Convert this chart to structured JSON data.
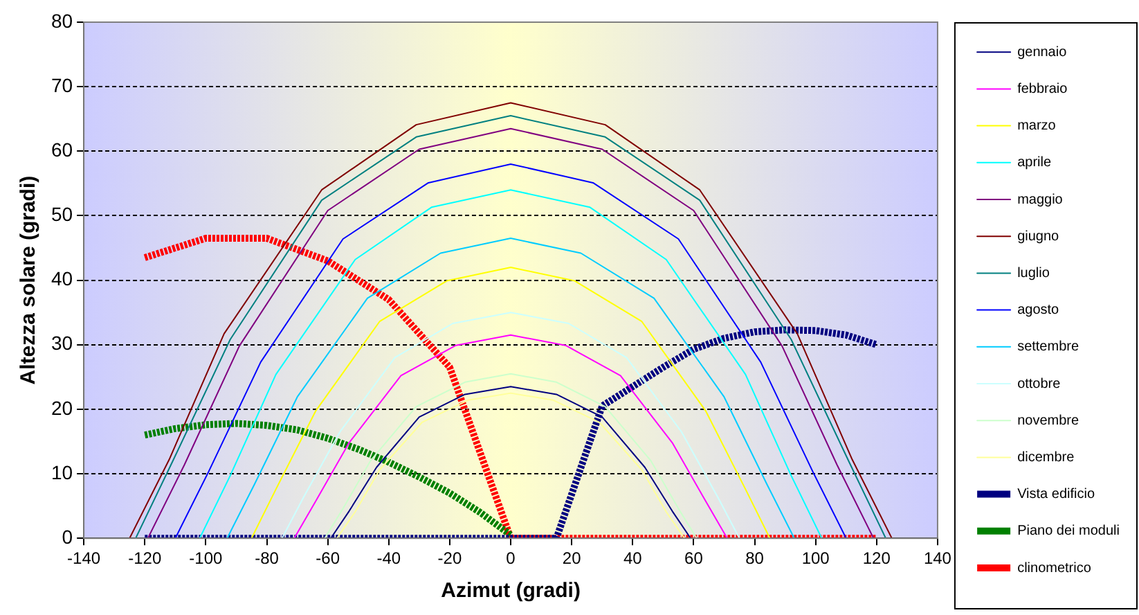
{
  "chart_data": {
    "type": "line",
    "xlabel": "Azimut (gradi)",
    "ylabel": "Altezza solare (gradi)",
    "xlim": [
      -140,
      140
    ],
    "xticks": [
      -140,
      -120,
      -100,
      -80,
      -60,
      -40,
      -20,
      0,
      20,
      40,
      60,
      80,
      100,
      120,
      140
    ],
    "ylim": [
      0,
      80
    ],
    "yticks": [
      0,
      10,
      20,
      30,
      40,
      50,
      60,
      70,
      80
    ],
    "grid": "y",
    "legend": "right",
    "marker": "none",
    "line_style": "solid",
    "series": [
      {
        "name": "gennaio",
        "color": "#000080",
        "x": [
          -59,
          -53,
          -44,
          -30,
          -15,
          0,
          15,
          30,
          44,
          53,
          59
        ],
        "values": [
          0,
          4.2,
          11,
          18.8,
          22.3,
          23.5,
          22.3,
          18.8,
          11,
          4.2,
          0
        ]
      },
      {
        "name": "febbraio",
        "color": "#ff00ff",
        "x": [
          -71,
          -64,
          -53,
          -36,
          -18,
          0,
          18,
          36,
          53,
          64,
          71
        ],
        "values": [
          0,
          5.7,
          14.8,
          25.2,
          29.9,
          31.5,
          29.9,
          25.2,
          14.8,
          5.7,
          0
        ]
      },
      {
        "name": "marzo",
        "color": "#ffff00",
        "x": [
          -85,
          -77,
          -64,
          -43,
          -21,
          0,
          21,
          43,
          64,
          77,
          85
        ],
        "values": [
          0,
          7.6,
          19.7,
          33.6,
          39.9,
          42,
          39.9,
          33.6,
          19.7,
          7.6,
          0
        ]
      },
      {
        "name": "aprile",
        "color": "#00ffff",
        "x": [
          -102,
          -92,
          -77,
          -51,
          -26,
          0,
          26,
          51,
          77,
          92,
          102
        ],
        "values": [
          0,
          9.7,
          25.4,
          43.2,
          51.3,
          54,
          51.3,
          43.2,
          25.4,
          9.7,
          0
        ]
      },
      {
        "name": "maggio",
        "color": "#800080",
        "x": [
          -119,
          -107,
          -89,
          -60,
          -30,
          0,
          30,
          60,
          89,
          107,
          119
        ],
        "values": [
          0,
          11.4,
          29.8,
          50.8,
          60.3,
          63.5,
          60.3,
          50.8,
          29.8,
          11.4,
          0
        ]
      },
      {
        "name": "giugno",
        "color": "#800000",
        "x": [
          -125,
          -112,
          -94,
          -62,
          -31,
          0,
          31,
          62,
          94,
          112,
          125
        ],
        "values": [
          0,
          12.2,
          31.7,
          54,
          64.1,
          67.5,
          64.1,
          54,
          31.7,
          12.2,
          0
        ]
      },
      {
        "name": "luglio",
        "color": "#008080",
        "x": [
          -123,
          -111,
          -92,
          -62,
          -31,
          0,
          31,
          62,
          92,
          111,
          123
        ],
        "values": [
          0,
          11.8,
          30.8,
          52.4,
          62.2,
          65.5,
          62.2,
          52.4,
          30.8,
          11.8,
          0
        ]
      },
      {
        "name": "agosto",
        "color": "#0000ff",
        "x": [
          -110,
          -99,
          -82,
          -55,
          -27,
          0,
          27,
          55,
          82,
          99,
          110
        ],
        "values": [
          0,
          10.4,
          27.3,
          46.4,
          55.1,
          58,
          55.1,
          46.4,
          27.3,
          10.4,
          0
        ]
      },
      {
        "name": "settembre",
        "color": "#00ccff",
        "x": [
          -93,
          -84,
          -70,
          -47,
          -23,
          0,
          23,
          47,
          70,
          84,
          93
        ],
        "values": [
          0,
          8.4,
          21.9,
          37.2,
          44.2,
          46.5,
          44.2,
          37.2,
          21.9,
          8.4,
          0
        ]
      },
      {
        "name": "ottobre",
        "color": "#ccffff",
        "x": [
          -75,
          -68,
          -56,
          -38,
          -19,
          0,
          19,
          38,
          56,
          68,
          75
        ],
        "values": [
          0,
          6.3,
          16.5,
          28,
          33.3,
          35,
          33.3,
          28,
          16.5,
          6.3,
          0
        ]
      },
      {
        "name": "novembre",
        "color": "#ccffcc",
        "x": [
          -61,
          -55,
          -46,
          -31,
          -15,
          0,
          15,
          31,
          46,
          55,
          61
        ],
        "values": [
          0,
          4.6,
          12,
          20.4,
          24.2,
          25.5,
          24.2,
          20.4,
          12,
          4.6,
          0
        ]
      },
      {
        "name": "dicembre",
        "color": "#ffff99",
        "x": [
          -57,
          -51,
          -43,
          -29,
          -14,
          0,
          14,
          29,
          43,
          51,
          57
        ],
        "values": [
          0,
          4.1,
          10.6,
          18,
          21.4,
          22.5,
          21.4,
          18,
          10.6,
          4.1,
          0
        ]
      },
      {
        "name": "Vista edificio",
        "color": "#000080",
        "line_style": "dotted",
        "x": [
          -120,
          0,
          15,
          30,
          40,
          50,
          60,
          70,
          80,
          90,
          100,
          110,
          120
        ],
        "values": [
          0,
          0,
          0,
          20.5,
          23.5,
          26.5,
          29.3,
          31,
          32,
          32.3,
          32.2,
          31.5,
          30
        ]
      },
      {
        "name": "Piano dei moduli",
        "color": "#008000",
        "line_style": "dotted",
        "x": [
          -120,
          -110,
          -100,
          -90,
          -80,
          -70,
          -60,
          -50,
          -40,
          -30,
          -20,
          -10,
          0
        ],
        "values": [
          16,
          17,
          17.6,
          17.8,
          17.5,
          16.8,
          15.5,
          13.8,
          11.8,
          9.5,
          7,
          4,
          0.5
        ]
      },
      {
        "name": "clinometrico",
        "color": "#ff0000",
        "line_style": "dotted",
        "x": [
          -120,
          -100,
          -80,
          -60,
          -40,
          -20,
          0,
          120
        ],
        "values": [
          43.5,
          46.5,
          46.5,
          43,
          37,
          26.5,
          0,
          0
        ]
      }
    ]
  }
}
